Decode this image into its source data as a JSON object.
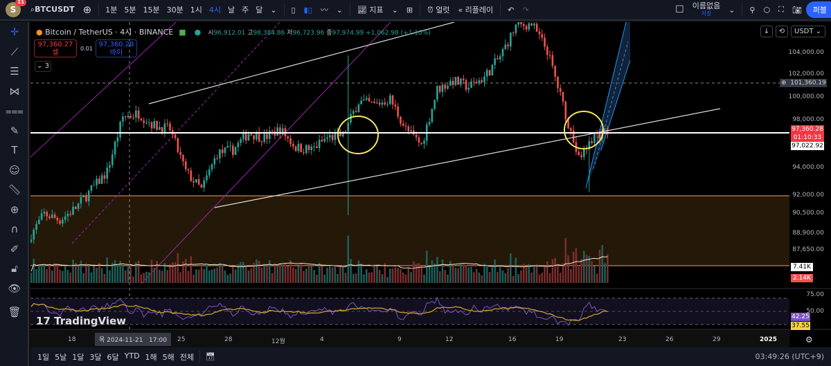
{
  "header": {
    "avatar_letter": "S",
    "notification_count": "11",
    "symbol": "BTCUSDT",
    "intervals": [
      "1분",
      "5분",
      "15분",
      "30분",
      "1시",
      "4시",
      "날",
      "주",
      "달"
    ],
    "active_interval": "4시",
    "indicators_label": "지표",
    "alert_label": "얼럿",
    "replay_label": "리플레이",
    "layout_name": "이름없음",
    "layout_status": "저장",
    "publish_label": "퍼블"
  },
  "legend": {
    "title": "Bitcoin / TetherUS · 4시 · BINANCE",
    "open_label": "시",
    "open": "96,912.01",
    "high_label": "고",
    "high": "98,384.86",
    "low_label": "저",
    "low": "96,723.96",
    "close_label": "종",
    "close": "97,974.99",
    "change": "+1,062.98 (+1.10%)",
    "sell_price": "97,360.27",
    "sell_label": "셀",
    "spread": "0.01",
    "buy_price": "97,360.28",
    "buy_label": "바이",
    "collapse_count": "3"
  },
  "price_axis": {
    "currency": "USDT",
    "ticks": [
      "104,000.00",
      "102,000.00",
      "100,000.00",
      "98,000.00",
      "94,000.00",
      "92,000.00",
      "90,500.00",
      "88,900.00",
      "87,650.00"
    ],
    "crosshair_price": "101,360.19",
    "last_price": "97,360.28",
    "countdown": "01:10:33",
    "line_price": "97,022.92",
    "volume_ma": "7.41K",
    "volume": "2.14K",
    "rsi_ticks": [
      "75.00",
      "50.00"
    ],
    "rsi": "42.25",
    "rsi_ma": "37.55"
  },
  "time_axis": {
    "ticks": [
      "18",
      "25",
      "28",
      "12월",
      "4",
      "9",
      "12",
      "16",
      "19",
      "23",
      "26",
      "29",
      "2025"
    ],
    "crosshair_time": "목 2024-11-21   17:00"
  },
  "bottom_bar": {
    "ranges": [
      "1일",
      "5날",
      "1달",
      "3달",
      "6달",
      "YTD",
      "1해",
      "5해",
      "전체"
    ],
    "clock": "03:49:26 (UTC+9)"
  },
  "watermark": "TradingView",
  "colors": {
    "up": "#26a69a",
    "down": "#ef5350",
    "rsi": "#7e57c2",
    "rsi_ma": "#f0c419",
    "accent": "#2962ff",
    "circle": "#f5e663"
  },
  "chart_data": {
    "type": "candlestick",
    "interval": "4h",
    "daily_close_approx": {
      "dates": [
        "11-15",
        "11-16",
        "11-17",
        "11-18",
        "11-19",
        "11-20",
        "11-21",
        "11-22",
        "11-23",
        "11-24",
        "11-25",
        "11-26",
        "11-27",
        "11-28",
        "11-29",
        "11-30",
        "12-01",
        "12-02",
        "12-03",
        "12-04",
        "12-05",
        "12-06",
        "12-07",
        "12-08",
        "12-09",
        "12-10",
        "12-11",
        "12-12",
        "12-13",
        "12-14",
        "12-15",
        "12-16",
        "12-17",
        "12-18",
        "12-19",
        "12-20",
        "12-21",
        "12-22"
      ],
      "close": [
        88500,
        90500,
        90000,
        91000,
        92500,
        94000,
        98500,
        98800,
        97800,
        97500,
        94000,
        92500,
        95500,
        95800,
        97200,
        96800,
        97500,
        96000,
        95800,
        96800,
        97000,
        99800,
        99500,
        100000,
        97500,
        96200,
        100800,
        101500,
        101000,
        101800,
        103500,
        106000,
        106200,
        104000,
        99500,
        95000,
        97000,
        97360
      ]
    },
    "price_range": [
      86500,
      106500
    ]
  }
}
